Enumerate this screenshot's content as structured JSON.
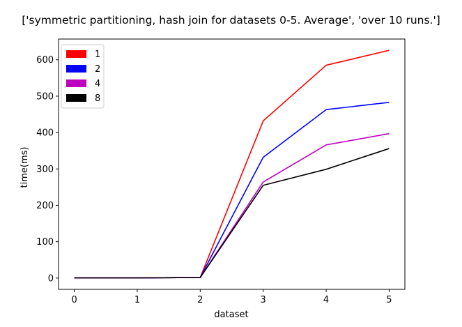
{
  "chart_data": {
    "type": "line",
    "title": "['symmetric partitioning, hash join for datasets 0-5. Average', 'over 10 runs.']",
    "xlabel": "dataset",
    "ylabel": "time(ms)",
    "x": [
      0,
      1,
      2,
      3,
      4,
      5
    ],
    "x_ticks": [
      "0",
      "1",
      "2",
      "3",
      "4",
      "5"
    ],
    "y_ticks": [
      "0",
      "100",
      "200",
      "300",
      "400",
      "500",
      "600"
    ],
    "xlim": [
      -0.25,
      5.25
    ],
    "ylim": [
      -31,
      657
    ],
    "grid": false,
    "legend_position": "upper-left",
    "series": [
      {
        "name": "1",
        "color": "#ff0000",
        "values": [
          0.5,
          0.5,
          1.5,
          432,
          585,
          626
        ]
      },
      {
        "name": "2",
        "color": "#0000ff",
        "values": [
          0.5,
          0.5,
          1.5,
          332,
          463,
          483
        ]
      },
      {
        "name": "4",
        "color": "#bf00bf",
        "values": [
          0.5,
          0.5,
          1.5,
          264,
          366,
          397
        ]
      },
      {
        "name": "8",
        "color": "#000000",
        "values": [
          0.5,
          0.5,
          1.5,
          255,
          299,
          356
        ]
      }
    ]
  }
}
